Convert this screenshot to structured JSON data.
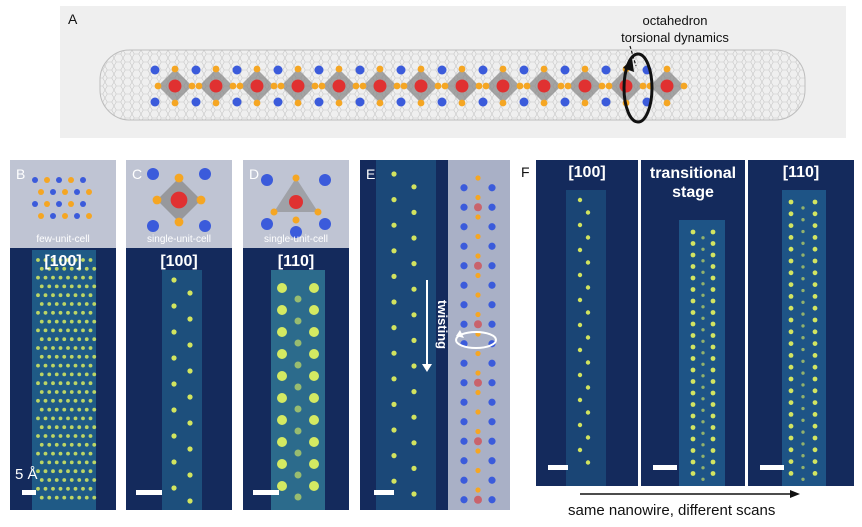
{
  "panel_a": {
    "letter": "A",
    "annotation_line1": "octahedron",
    "annotation_line2": "torsional dynamics"
  },
  "panel_b": {
    "letter": "B",
    "inset_label": "few-unit-cell",
    "direction": "[100]",
    "scale_label": "5 Å"
  },
  "panel_c": {
    "letter": "C",
    "inset_label": "single-unit-cell",
    "direction": "[100]"
  },
  "panel_d": {
    "letter": "D",
    "inset_label": "single-unit-cell",
    "direction": "[110]"
  },
  "panel_e": {
    "letter": "E",
    "label": "twisting"
  },
  "panel_f": {
    "letter": "F",
    "scan1_label": "[100]",
    "scan2_label_line1": "transitional",
    "scan2_label_line2": "stage",
    "scan3_label": "[110]",
    "caption": "same nanowire, different scans"
  },
  "colors": {
    "background_stem": "#142a5c",
    "atom_bright": "#f2ff5a",
    "oxygen": "#f5a623",
    "cation": "#3b5bdb",
    "center": "#e03131"
  }
}
